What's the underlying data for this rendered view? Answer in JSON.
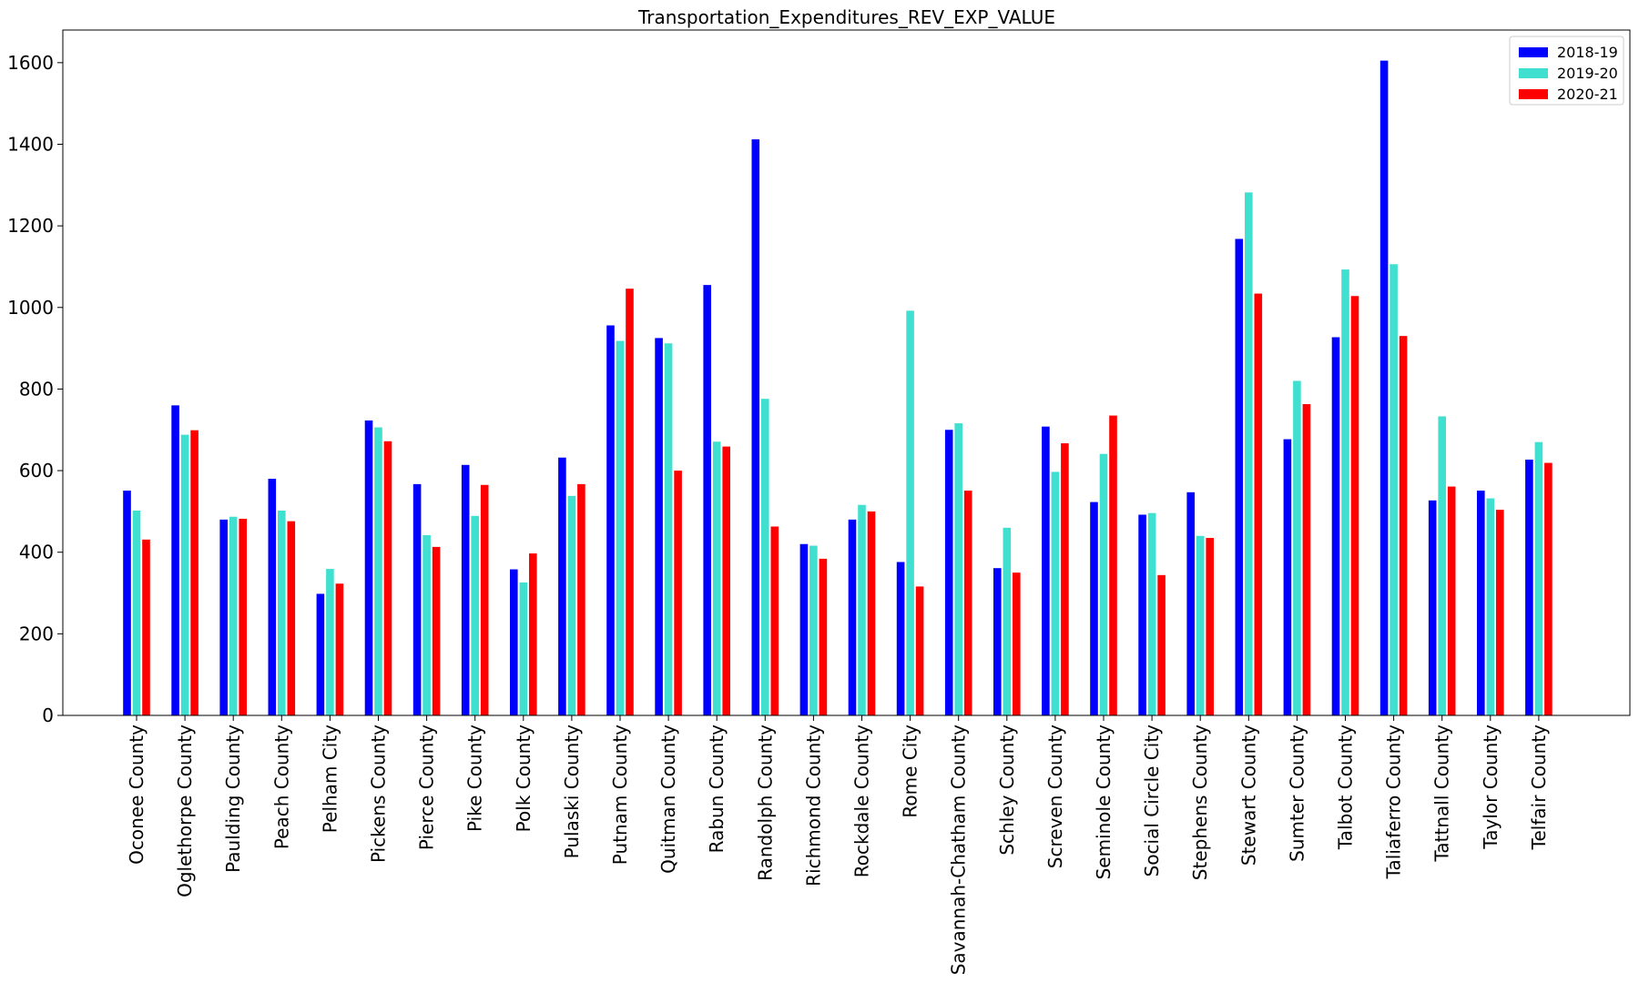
{
  "chart_data": {
    "type": "bar",
    "title": "Transportation_Expenditures_REV_EXP_VALUE",
    "xlabel": "",
    "ylabel": "",
    "ylim": [
      0,
      1680
    ],
    "yticks": [
      0,
      200,
      400,
      600,
      800,
      1000,
      1200,
      1400,
      1600
    ],
    "grid": false,
    "legend_position": "top-right",
    "categories": [
      "Oconee County",
      "Oglethorpe County",
      "Paulding County",
      "Peach County",
      "Pelham City",
      "Pickens County",
      "Pierce County",
      "Pike County",
      "Polk County",
      "Pulaski County",
      "Putnam County",
      "Quitman County",
      "Rabun County",
      "Randolph County",
      "Richmond County",
      "Rockdale County",
      "Rome City",
      "Savannah-Chatham County",
      "Schley County",
      "Screven County",
      "Seminole County",
      "Social Circle City",
      "Stephens County",
      "Stewart County",
      "Sumter County",
      "Talbot County",
      "Taliaferro County",
      "Tattnall County",
      "Taylor County",
      "Telfair County"
    ],
    "series": [
      {
        "name": "2018-19",
        "color": "#0000ff",
        "values": [
          551,
          760,
          480,
          580,
          298,
          723,
          567,
          614,
          358,
          632,
          956,
          925,
          1055,
          1412,
          420,
          480,
          376,
          700,
          361,
          708,
          523,
          492,
          547,
          1168,
          677,
          927,
          1605,
          527,
          551,
          627
        ]
      },
      {
        "name": "2019-20",
        "color": "#40e0d0",
        "values": [
          502,
          688,
          487,
          502,
          359,
          706,
          442,
          489,
          326,
          538,
          918,
          912,
          671,
          776,
          416,
          516,
          992,
          716,
          460,
          597,
          641,
          496,
          440,
          1282,
          820,
          1093,
          1106,
          733,
          532,
          670
        ]
      },
      {
        "name": "2020-21",
        "color": "#ff0000",
        "values": [
          431,
          699,
          482,
          476,
          323,
          672,
          413,
          565,
          397,
          567,
          1046,
          600,
          659,
          463,
          384,
          500,
          316,
          551,
          350,
          667,
          735,
          344,
          435,
          1034,
          763,
          1028,
          930,
          561,
          504,
          619
        ]
      }
    ]
  }
}
